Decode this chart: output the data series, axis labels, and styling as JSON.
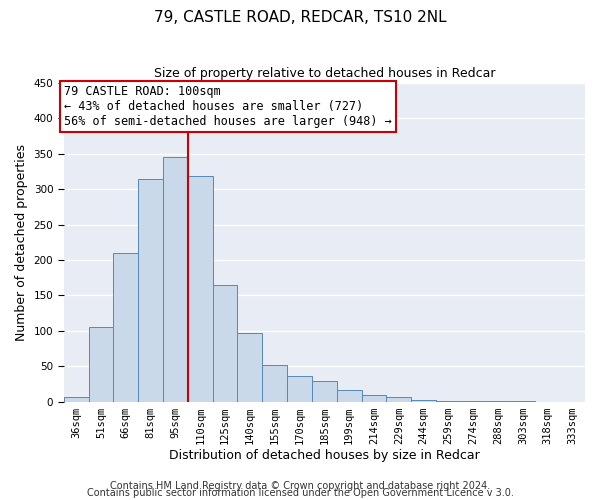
{
  "title": "79, CASTLE ROAD, REDCAR, TS10 2NL",
  "subtitle": "Size of property relative to detached houses in Redcar",
  "xlabel": "Distribution of detached houses by size in Redcar",
  "ylabel": "Number of detached properties",
  "bar_values": [
    7,
    105,
    210,
    315,
    345,
    318,
    165,
    97,
    51,
    36,
    29,
    16,
    9,
    6,
    2,
    1,
    1,
    1,
    1,
    0,
    0
  ],
  "all_labels": [
    "36sqm",
    "51sqm",
    "66sqm",
    "81sqm",
    "95sqm",
    "110sqm",
    "125sqm",
    "140sqm",
    "155sqm",
    "170sqm",
    "185sqm",
    "199sqm",
    "214sqm",
    "229sqm",
    "244sqm",
    "259sqm",
    "274sqm",
    "288sqm",
    "303sqm",
    "318sqm",
    "333sqm"
  ],
  "bar_color": "#c9d9ea",
  "bar_edge_color": "#5588bb",
  "vline_x": 4.5,
  "vline_color": "#cc0000",
  "ylim": [
    0,
    450
  ],
  "yticks": [
    0,
    50,
    100,
    150,
    200,
    250,
    300,
    350,
    400,
    450
  ],
  "annotation_title": "79 CASTLE ROAD: 100sqm",
  "annotation_line1": "← 43% of detached houses are smaller (727)",
  "annotation_line2": "56% of semi-detached houses are larger (948) →",
  "annotation_box_color": "#cc0000",
  "footer_line1": "Contains HM Land Registry data © Crown copyright and database right 2024.",
  "footer_line2": "Contains public sector information licensed under the Open Government Licence v 3.0.",
  "plot_bg_color": "#e8edf5",
  "fig_bg_color": "#ffffff",
  "grid_color": "#ffffff",
  "title_fontsize": 11,
  "subtitle_fontsize": 9,
  "axis_label_fontsize": 9,
  "tick_fontsize": 7.5,
  "footer_fontsize": 7,
  "ann_fontsize": 8.5
}
